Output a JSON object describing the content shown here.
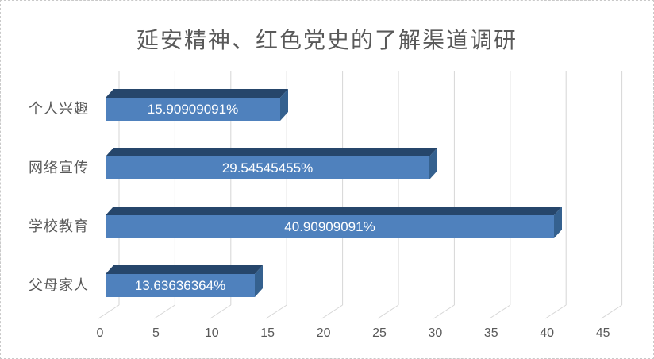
{
  "chart_data": {
    "type": "bar",
    "orientation": "horizontal",
    "style": "3d",
    "title": "延安精神、红色党史的了解渠道调研",
    "categories": [
      "个人兴趣",
      "网络宣传",
      "学校教育",
      "父母家人"
    ],
    "values": [
      15.90909091,
      29.54545455,
      40.90909091,
      13.63636364
    ],
    "data_labels": [
      "15.90909091%",
      "29.54545455%",
      "40.90909091%",
      "13.63636364%"
    ],
    "x_ticks": [
      "0",
      "5",
      "10",
      "15",
      "20",
      "25",
      "30",
      "35",
      "40",
      "45"
    ],
    "xlim": [
      0,
      45
    ],
    "grid": true,
    "legend": false,
    "colors": {
      "bar_front": "#4F81BD",
      "bar_top": "#26466B",
      "bar_side": "#35618F",
      "value_label_text": "#FFFFFF",
      "gridline": "#D6D6D6",
      "axis_text": "#595959",
      "title_text": "#595959",
      "background": "#FFFFFF"
    }
  }
}
